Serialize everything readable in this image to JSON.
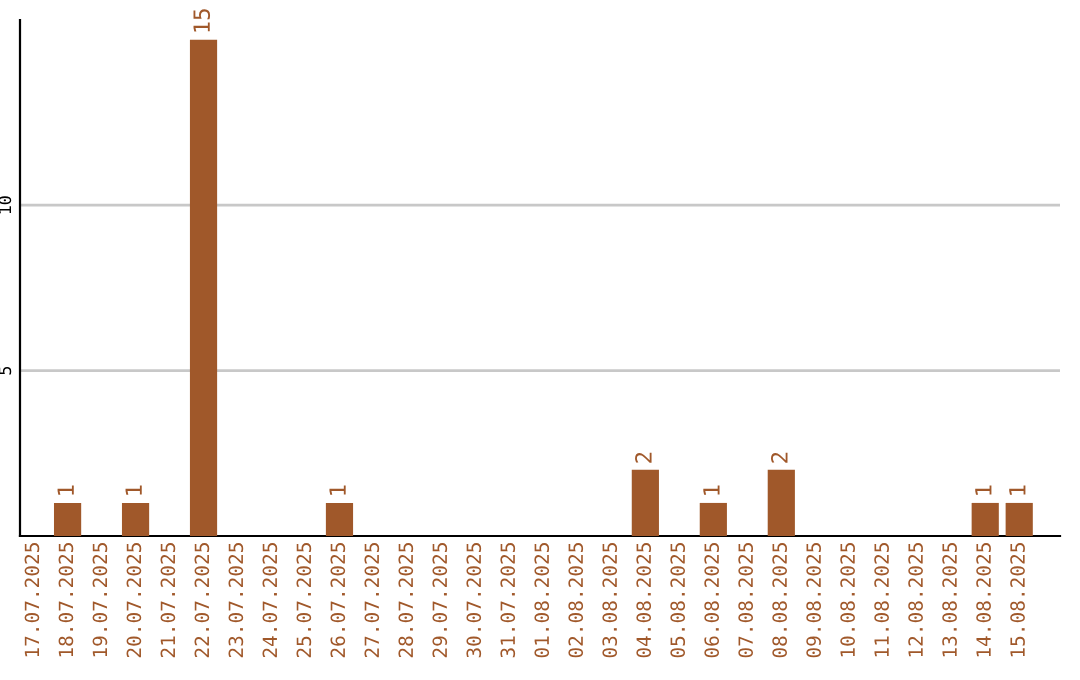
{
  "chart_data": {
    "type": "bar",
    "categories": [
      "17.07.2025",
      "18.07.2025",
      "19.07.2025",
      "20.07.2025",
      "21.07.2025",
      "22.07.2025",
      "23.07.2025",
      "24.07.2025",
      "25.07.2025",
      "26.07.2025",
      "27.07.2025",
      "28.07.2025",
      "29.07.2025",
      "30.07.2025",
      "31.07.2025",
      "01.08.2025",
      "02.08.2025",
      "03.08.2025",
      "04.08.2025",
      "05.08.2025",
      "06.08.2025",
      "07.08.2025",
      "08.08.2025",
      "09.08.2025",
      "10.08.2025",
      "11.08.2025",
      "12.08.2025",
      "13.08.2025",
      "14.08.2025",
      "15.08.2025"
    ],
    "values": [
      0,
      1,
      0,
      1,
      0,
      15,
      0,
      0,
      0,
      1,
      0,
      0,
      0,
      0,
      0,
      0,
      0,
      0,
      2,
      0,
      1,
      0,
      2,
      0,
      0,
      0,
      0,
      0,
      1,
      1
    ],
    "value_labels": [
      null,
      "1",
      null,
      "1",
      null,
      "15",
      null,
      null,
      null,
      "1",
      null,
      null,
      null,
      null,
      null,
      null,
      null,
      null,
      "2",
      null,
      "1",
      null,
      "2",
      null,
      null,
      null,
      null,
      null,
      "1",
      "1"
    ],
    "color": "#a0582a",
    "ylim": [
      0,
      15.6
    ],
    "yticks": [
      5,
      10
    ],
    "grid": "y",
    "legend": false
  }
}
